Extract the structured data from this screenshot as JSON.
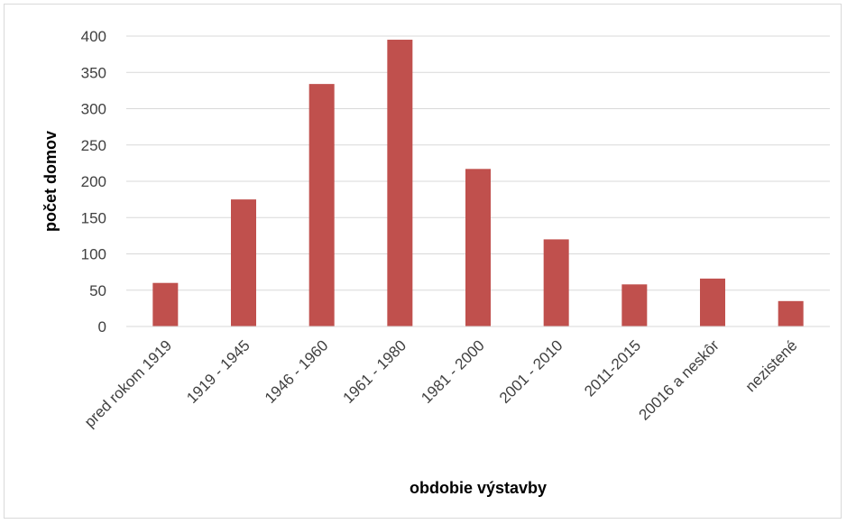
{
  "chart_data": {
    "type": "bar",
    "categories": [
      "pred rokom 1919",
      "1919 - 1945",
      "1946 - 1960",
      "1961 - 1980",
      "1981 - 2000",
      "2001 - 2010",
      "2011-2015",
      "20016 a neskôr",
      "nezistené"
    ],
    "values": [
      60,
      175,
      334,
      395,
      217,
      120,
      58,
      66,
      35
    ],
    "xlabel": "obdobie výstavby",
    "ylabel": "počet domov",
    "ylim": [
      0,
      400
    ],
    "yticks": [
      0,
      50,
      100,
      150,
      200,
      250,
      300,
      350,
      400
    ],
    "grid": true,
    "legend": "none",
    "bar_color": "#c0504d",
    "grid_color": "#d9d9d9"
  }
}
